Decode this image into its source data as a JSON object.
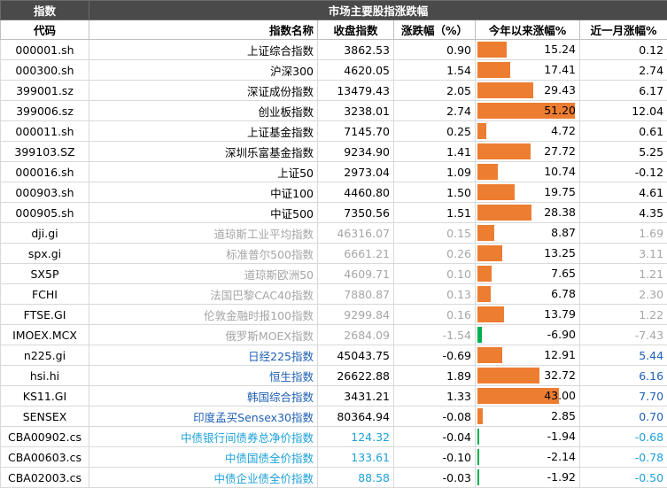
{
  "title": "市场主要股指涨跌幅",
  "header_label": "指数",
  "columns": [
    "代码",
    "指数名称",
    "收盘指数",
    "涨跌幅（%）",
    "今年以来涨幅%",
    "近一月涨幅%"
  ],
  "colors": {
    "bar_positive": "#ed7d31",
    "bar_negative": "#00b050"
  },
  "bar_max": 51.2,
  "rows": [
    {
      "code": "000001.sh",
      "name": "上证综合指数",
      "close": "3862.53",
      "chg": "0.90",
      "ytd": "15.24",
      "ytd_value": 15.24,
      "m1": "0.12",
      "group": "main"
    },
    {
      "code": "000300.sh",
      "name": "沪深300",
      "close": "4620.05",
      "chg": "1.54",
      "ytd": "17.41",
      "ytd_value": 17.41,
      "m1": "2.74",
      "group": "main"
    },
    {
      "code": "399001.sz",
      "name": "深证成份指数",
      "close": "13479.43",
      "chg": "2.05",
      "ytd": "29.43",
      "ytd_value": 29.43,
      "m1": "6.17",
      "group": "main"
    },
    {
      "code": "399006.sz",
      "name": "创业板指数",
      "close": "3238.01",
      "chg": "2.74",
      "ytd": "51.20",
      "ytd_value": 51.2,
      "m1": "12.04",
      "group": "main"
    },
    {
      "code": "000011.sh",
      "name": "上证基金指数",
      "close": "7145.70",
      "chg": "0.25",
      "ytd": "4.72",
      "ytd_value": 4.72,
      "m1": "0.61",
      "group": "main"
    },
    {
      "code": "399103.SZ",
      "name": "深圳乐富基金指数",
      "close": "9234.90",
      "chg": "1.41",
      "ytd": "27.72",
      "ytd_value": 27.72,
      "m1": "5.25",
      "group": "main"
    },
    {
      "code": "000016.sh",
      "name": "上证50",
      "close": "2973.04",
      "chg": "1.09",
      "ytd": "10.74",
      "ytd_value": 10.74,
      "m1": "-0.12",
      "group": "main"
    },
    {
      "code": "000903.sh",
      "name": "中证100",
      "close": "4460.80",
      "chg": "1.50",
      "ytd": "19.75",
      "ytd_value": 19.75,
      "m1": "4.61",
      "group": "main"
    },
    {
      "code": "000905.sh",
      "name": "中证500",
      "close": "7350.56",
      "chg": "1.51",
      "ytd": "28.38",
      "ytd_value": 28.38,
      "m1": "4.35",
      "group": "main"
    },
    {
      "code": "dji.gi",
      "name": "道琼斯工业平均指数",
      "close": "46316.07",
      "chg": "0.15",
      "ytd": "8.87",
      "ytd_value": 8.87,
      "m1": "1.69",
      "group": "gray"
    },
    {
      "code": "spx.gi",
      "name": "标准普尔500指数",
      "close": "6661.21",
      "chg": "0.26",
      "ytd": "13.25",
      "ytd_value": 13.25,
      "m1": "3.11",
      "group": "gray"
    },
    {
      "code": "SX5P",
      "name": "道琼斯欧洲50",
      "close": "4609.71",
      "chg": "0.10",
      "ytd": "7.65",
      "ytd_value": 7.65,
      "m1": "1.21",
      "group": "gray"
    },
    {
      "code": "FCHI",
      "name": "法国巴黎CAC40指数",
      "close": "7880.87",
      "chg": "0.13",
      "ytd": "6.78",
      "ytd_value": 6.78,
      "m1": "2.30",
      "group": "gray"
    },
    {
      "code": "FTSE.GI",
      "name": "伦敦金融时报100指数",
      "close": "9299.84",
      "chg": "0.16",
      "ytd": "13.79",
      "ytd_value": 13.79,
      "m1": "1.22",
      "group": "gray"
    },
    {
      "code": "IMOEX.MCX",
      "name": "俄罗斯MOEX指数",
      "close": "2684.09",
      "chg": "-1.54",
      "ytd": "-6.90",
      "ytd_value": -6.9,
      "m1": "-7.43",
      "group": "gray"
    },
    {
      "code": "n225.gi",
      "name": "日经225指数",
      "close": "45043.75",
      "chg": "-0.69",
      "ytd": "12.91",
      "ytd_value": 12.91,
      "m1": "5.44",
      "group": "blue"
    },
    {
      "code": "hsi.hi",
      "name": "恒生指数",
      "close": "26622.88",
      "chg": "1.89",
      "ytd": "32.72",
      "ytd_value": 32.72,
      "m1": "6.16",
      "group": "blue"
    },
    {
      "code": "KS11.GI",
      "name": "韩国综合指数",
      "close": "3431.21",
      "chg": "1.33",
      "ytd": "43.00",
      "ytd_value": 43.0,
      "m1": "7.70",
      "group": "blue"
    },
    {
      "code": "SENSEX",
      "name": "印度孟买Sensex30指数",
      "close": "80364.94",
      "chg": "-0.08",
      "ytd": "2.85",
      "ytd_value": 2.85,
      "m1": "0.70",
      "group": "blue"
    },
    {
      "code": "CBA00902.cs",
      "name": "中债银行间债券总净价指数",
      "close": "124.32",
      "chg": "-0.04",
      "ytd": "-1.94",
      "ytd_value": -1.94,
      "m1": "-0.68",
      "group": "cyan"
    },
    {
      "code": "CBA00603.cs",
      "name": "中债国债全价指数",
      "close": "133.61",
      "chg": "-0.10",
      "ytd": "-2.14",
      "ytd_value": -2.14,
      "m1": "-0.78",
      "group": "cyan"
    },
    {
      "code": "CBA02003.cs",
      "name": "中债企业债全价指数",
      "close": "88.58",
      "chg": "-0.03",
      "ytd": "-1.92",
      "ytd_value": -1.92,
      "m1": "-0.50",
      "group": "cyan"
    }
  ]
}
